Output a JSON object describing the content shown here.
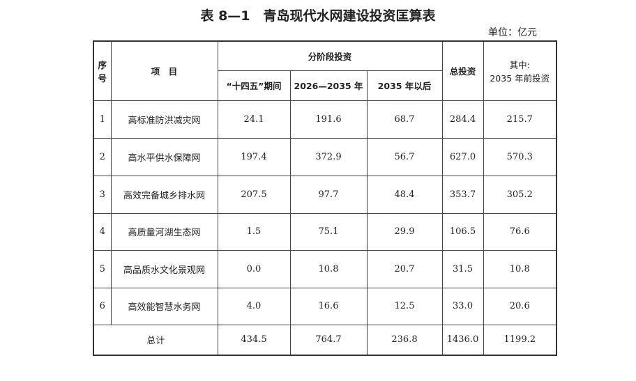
{
  "header": {
    "title": "表 8—1　青岛现代水网建设投资匡算表",
    "unit": "单位：亿元"
  },
  "table": {
    "columns": {
      "no": "序\n号",
      "item": "项　目",
      "phased": "分阶段投资",
      "phases": [
        "“十四五”期间",
        "2026—2035 年",
        "2035 年以后"
      ],
      "total": "总投资",
      "before": "其中:\n2035 年前投资"
    },
    "rows": [
      [
        "1",
        "高标准防洪减灾网",
        "24.1",
        "191.6",
        "68.7",
        "284.4",
        "215.7"
      ],
      [
        "2",
        "高水平供水保障网",
        "197.4",
        "372.9",
        "56.7",
        "627.0",
        "570.3"
      ],
      [
        "3",
        "高效完备城乡排水网",
        "207.5",
        "97.7",
        "48.4",
        "353.7",
        "305.2"
      ],
      [
        "4",
        "高质量河湖生态网",
        "1.5",
        "75.1",
        "29.9",
        "106.5",
        "76.6"
      ],
      [
        "5",
        "高品质水文化景观网",
        "0.0",
        "10.8",
        "20.7",
        "31.5",
        "10.8"
      ],
      [
        "6",
        "高效能智慧水务网",
        "4.0",
        "16.6",
        "12.5",
        "33.0",
        "20.6"
      ]
    ],
    "total_row": [
      "总计",
      "434.5",
      "764.7",
      "236.8",
      "1436.0",
      "1199.2"
    ]
  }
}
